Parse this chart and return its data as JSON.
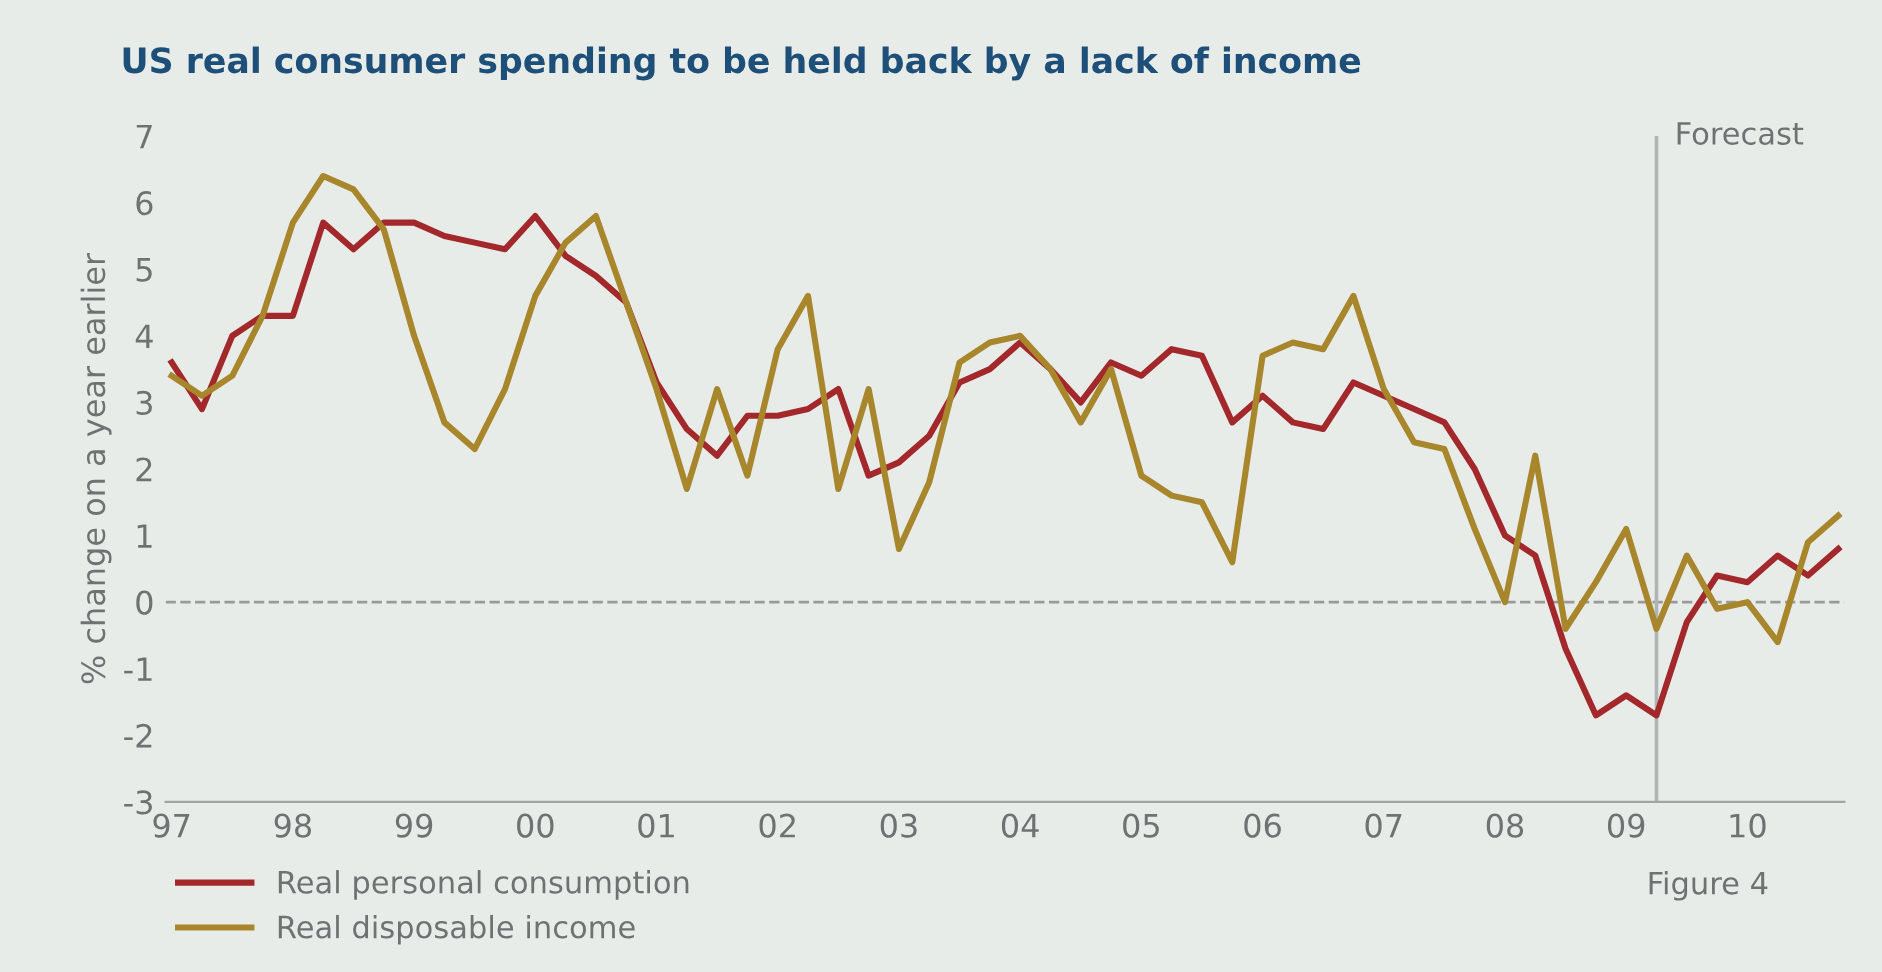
{
  "chart_data": {
    "type": "line",
    "title": "US real consumer spending to be held back by a lack of income",
    "ylabel": "% change on a year earlier",
    "x": [
      1997,
      1997.25,
      1997.5,
      1997.75,
      1998,
      1998.25,
      1998.5,
      1998.75,
      1999,
      1999.25,
      1999.5,
      1999.75,
      2000,
      2000.25,
      2000.5,
      2000.75,
      2001,
      2001.25,
      2001.5,
      2001.75,
      2002,
      2002.25,
      2002.5,
      2002.75,
      2003,
      2003.25,
      2003.5,
      2003.75,
      2004,
      2004.25,
      2004.5,
      2004.75,
      2005,
      2005.25,
      2005.5,
      2005.75,
      2006,
      2006.25,
      2006.5,
      2006.75,
      2007,
      2007.25,
      2007.5,
      2007.75,
      2008,
      2008.25,
      2008.5,
      2008.75,
      2009,
      2009.25,
      2009.5,
      2009.75,
      2010,
      2010.25,
      2010.5,
      2010.75
    ],
    "series": [
      {
        "name": "Real personal consumption",
        "color": "#a3282b",
        "values": [
          3.6,
          2.9,
          4.0,
          4.3,
          4.3,
          5.7,
          5.3,
          5.7,
          5.7,
          5.5,
          5.4,
          5.3,
          5.8,
          5.2,
          4.9,
          4.5,
          3.3,
          2.6,
          2.2,
          2.8,
          2.8,
          2.9,
          3.2,
          1.9,
          2.1,
          2.5,
          3.3,
          3.5,
          3.9,
          3.5,
          3.0,
          3.6,
          3.4,
          3.8,
          3.7,
          2.7,
          3.1,
          2.7,
          2.6,
          3.3,
          3.1,
          2.9,
          2.7,
          2.0,
          1.0,
          0.7,
          -0.7,
          -1.7,
          -1.4,
          -1.7,
          -0.3,
          0.4,
          0.3,
          0.7,
          0.4,
          0.8
        ]
      },
      {
        "name": "Real disposable income",
        "color": "#a8862c",
        "values": [
          3.4,
          3.1,
          3.4,
          4.3,
          5.7,
          6.4,
          6.2,
          5.6,
          4.0,
          2.7,
          2.3,
          3.2,
          4.6,
          5.4,
          5.8,
          4.5,
          3.2,
          1.7,
          3.2,
          1.9,
          3.8,
          4.6,
          1.7,
          3.2,
          0.8,
          1.8,
          3.6,
          3.9,
          4.0,
          3.5,
          2.7,
          3.5,
          1.9,
          1.6,
          1.5,
          0.6,
          3.7,
          3.9,
          3.8,
          4.6,
          3.2,
          2.4,
          2.3,
          1.1,
          0.0,
          2.2,
          -0.4,
          0.3,
          1.1,
          -0.4,
          0.7,
          -0.1,
          0.0,
          -0.6,
          0.9,
          1.3
        ]
      }
    ],
    "xlim": [
      1996.95,
      2010.8
    ],
    "ylim": [
      -3,
      7
    ],
    "yticks": [
      -3,
      -2,
      -1,
      0,
      1,
      2,
      3,
      4,
      5,
      6,
      7
    ],
    "xticks": [
      {
        "value": 1997,
        "label": "97"
      },
      {
        "value": 1998,
        "label": "98"
      },
      {
        "value": 1999,
        "label": "99"
      },
      {
        "value": 2000,
        "label": "00"
      },
      {
        "value": 2001,
        "label": "01"
      },
      {
        "value": 2002,
        "label": "02"
      },
      {
        "value": 2003,
        "label": "03"
      },
      {
        "value": 2004,
        "label": "04"
      },
      {
        "value": 2005,
        "label": "05"
      },
      {
        "value": 2006,
        "label": "06"
      },
      {
        "value": 2007,
        "label": "07"
      },
      {
        "value": 2008,
        "label": "08"
      },
      {
        "value": 2009,
        "label": "09"
      },
      {
        "value": 2010,
        "label": "10"
      }
    ],
    "ref_lines": [
      {
        "axis": "y",
        "value": 0,
        "color": "#9a9a9a",
        "line_style": "dashed"
      },
      {
        "axis": "x",
        "value": 2009.25,
        "label": "Forecast",
        "color": "#b0b4b4",
        "line_style": "solid"
      }
    ],
    "annotations": [
      "Figure 4"
    ],
    "legend": "bottom left",
    "grid": false,
    "marker": "none",
    "line_style": "solid"
  }
}
